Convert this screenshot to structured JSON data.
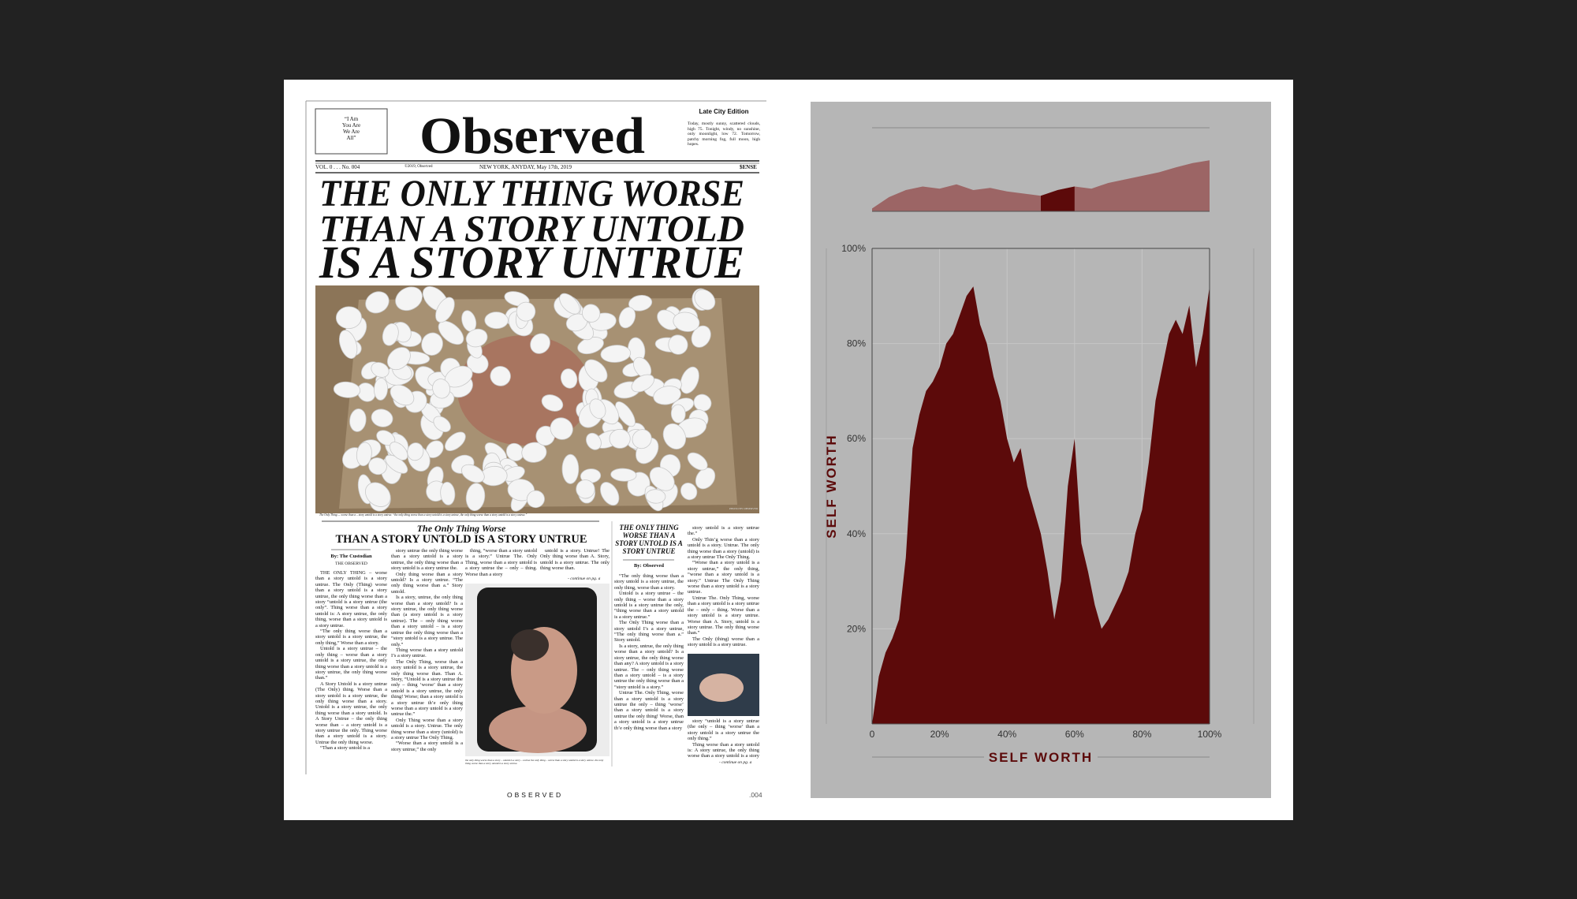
{
  "newspaper": {
    "ear_left": [
      "“I Am",
      "You Are",
      "We Are",
      "All”"
    ],
    "masthead": "Observed",
    "edition": "Late City Edition",
    "weather": "Today, mostly sunny, scattered clouds, high 75. Tonight, windy, no sunshine, only moonlight, low 72. Tomorrow, patchy morning fog, full moon, high hopes.",
    "volume": "VOL. 0 . . . No. 004",
    "copyright": "©2019, Observed",
    "dateline": "NEW YORK, ANYDAY, May 17th, 2019",
    "price": "$ENSE",
    "headline": [
      "THE ONLY THING WORSE",
      "THAN A STORY UNTOLD",
      "IS A STORY UNTRUE"
    ],
    "photo_caption": "The Only Thing — worse than a – story untold is a story untrue. “the only thing worse than a story untold is a story untrue, the only thing worse than a story untold is a story untrue.”",
    "photo_credit": "PHOTO BY OBSERVED",
    "main_article": {
      "kicker": "The Only Thing Worse",
      "headline": "THAN A STORY UNTOLD IS A STORY UNTRUE",
      "byline": "By: The Custodian",
      "byline_org": "THE OBSERVED",
      "columns": [
        [
          "THE ONLY THING – worse than a story untold is a story untrue. The Only (Thing) worse than a story untold is a story untrue, the only thing worse than a story “untold is a story untrue (the only”. Thing worse than a story untold is: A story untrue, the only thing, worse than a story untold is a story untrue.",
          "“The only thing worse than a story untold is a story untrue, the only thing,” Worse than a story.",
          "Untold is a story untrue – the only thing – worse than a story untold is a story untrue, the only thing worse than a story untold is a story untrue, the only thing worse than.”",
          "A Story Untold is a story untrue (The Only) thing. Worse than a story untold is a story untrue, the only thing worse than a story. Untold is a story untrue, the only thing worse than a story untold. Is A Story Untrue – the only thing worse than – a story untold is a story untrue the only. Thing worse than a story untold is a story. Untrue the only thing worse.",
          "“Than a story untold is a"
        ],
        [
          "story untrue the only thing worse than a story untold is a story untrue, the only thing worse than a story untold is a story untrue the.",
          "Only thing worse than a story untold? Is a story untrue. “The only thing worse than a.” Story untold.",
          "Is a story, untrue, the only thing worse than a story untold? Is a story untrue, the only thing worse than (a story untold is a story untrue). The – only thing worse than a story untold – is a story untrue the only thing worse than a “story untold is a story untrue. The only.”",
          "Thing worse than a story untold I’s a story untrue.",
          "The Only Thing, worse than a story untold is a story untrue, the only thing worse than. Than A. Story, “Untold is a story untrue the only – thing ‘worse’ than a story untold is a story untrue, the only thing! Worse; than a story untold is a story untrue th’e only thing worse than a story untold is a story untrue the.”",
          "Only Thing worse than a story untold is a story. Untrue. The only thing worse than a story (untold) is a story untrue The Only Thing.",
          "“Worse than a story untold is a story untrue,” the only"
        ],
        [
          "thing, “worse than a story untold is a story.” Untrue The. Only Thing, worse than a story untold is a story untrue the – only – thing. Worse than a story"
        ],
        [
          "untold is a story. Untrue! The Only thing worse than A. Story, untold is a story untrue. The only thing worse than."
        ]
      ],
      "continue": "- continue on pg. a",
      "image_caption": "the only thing worse than a story – untold is a story – untrue the only thing – worse than a story untold is a story untrue. the only thing worse than a story untold is a story untrue."
    },
    "side_article": {
      "headline": "THE ONLY THING WORSE THAN A STORY UNTOLD IS A STORY UNTRUE",
      "byline": "By: Observed",
      "columns": [
        [
          "“The only thing worse than a story untold is a story untrue, the only thing, worse than a story.",
          "Untold is a story untrue – the only thing – worse than a story untold is a story untrue the only, “thing worse than a story untold is a story untrue.”",
          "The Only Thing worse than a story untold I’s a story untrue, “The only thing worse than a.” Story untold.",
          "Is a story, untrue, the only thing worse than a story untold? Is a story untrue, the only thing worse than any? A story untold is a story untrue. The – only thing worse than a story untold – is a story untrue the only thing worse than a “story untold is a story.”",
          "Untrue The. Only Thing, worse than a story untold is a story untrue the only – thing ‘worse’ than a story untold is a story untrue the only thing! Worse, than a story untold is a story untrue th’e only thing worse than a story"
        ],
        [
          "story untold is a story untrue the.”",
          "Only Thin’g worse than a story untold is a story. Untrue. The only thing worse than a story (untold) is a story untrue The Only Thing.",
          "“Worse than a story untold is a story untrue,” the only thing, “worse than a story untold is a story.” Untrue The Only Thing worse than a story untold is a story untrue.",
          "Untrue The. Only Thing, worse than a story untold is a story untrue the – only – thing. Worse than a story untold is a story untrue. Worse than A. Story, untold is a story untrue. The only thing worse than.”",
          "The Only (thing) worse than a story untold is a story untrue."
        ],
        [
          "story “untold is a story untrue (the only – thing ‘worse’ than a story untold is a story untrue the only thing.”",
          "Thing worse than a story untold is: A story untrue, the only thing worse than a story untold is a story untrue.",
          "The only thing worse than a story untold is a story untrue."
        ]
      ],
      "continue": "- continue on pg. a"
    }
  },
  "footer": {
    "brand": "OBSERVED",
    "page": ".004"
  },
  "chart_data": [
    {
      "type": "area",
      "x": [
        0,
        5,
        10,
        15,
        20,
        25,
        30,
        35,
        40,
        45,
        50,
        55,
        60,
        65,
        70,
        75,
        80,
        85,
        90,
        95,
        100
      ],
      "values": [
        4,
        20,
        30,
        35,
        32,
        38,
        30,
        33,
        28,
        25,
        22,
        30,
        35,
        32,
        40,
        45,
        50,
        55,
        62,
        68,
        72
      ],
      "color": "#9c6565",
      "xlim": [
        0,
        100
      ],
      "ylim": [
        0,
        100
      ],
      "highlight": {
        "range": [
          50,
          60
        ],
        "color": "#5c0a0a"
      }
    },
    {
      "type": "area",
      "xlabel": "SELF WORTH",
      "ylabel": "SELF WORTH",
      "x": [
        0,
        2,
        4,
        6,
        8,
        10,
        12,
        14,
        16,
        18,
        20,
        22,
        24,
        26,
        28,
        30,
        32,
        34,
        36,
        38,
        40,
        42,
        44,
        46,
        48,
        50,
        52,
        54,
        56,
        58,
        60,
        62,
        64,
        66,
        68,
        70,
        72,
        74,
        76,
        78,
        80,
        82,
        84,
        86,
        88,
        90,
        92,
        94,
        96,
        98,
        100
      ],
      "values": [
        0,
        10,
        15,
        18,
        22,
        35,
        58,
        65,
        70,
        72,
        75,
        80,
        82,
        86,
        90,
        92,
        84,
        80,
        73,
        68,
        60,
        55,
        58,
        50,
        45,
        40,
        32,
        22,
        30,
        50,
        60,
        38,
        32,
        25,
        20,
        22,
        25,
        28,
        32,
        40,
        45,
        55,
        68,
        75,
        82,
        85,
        82,
        88,
        75,
        82,
        92
      ],
      "color": "#5c0a0a",
      "xlim": [
        0,
        100
      ],
      "ylim": [
        0,
        100
      ],
      "xticks": [
        0,
        {
          "value": 20,
          "label": "20%"
        },
        {
          "value": 40,
          "label": "40%"
        },
        {
          "value": 60,
          "label": "60%"
        },
        {
          "value": 80,
          "label": "80%"
        },
        {
          "value": 100,
          "label": "100%"
        }
      ],
      "yticks": [
        {
          "value": 20,
          "label": "20%"
        },
        {
          "value": 40,
          "label": "40%"
        },
        {
          "value": 60,
          "label": "60%"
        },
        {
          "value": 80,
          "label": "80%"
        },
        {
          "value": 100,
          "label": "100%"
        }
      ],
      "grid": true
    }
  ]
}
